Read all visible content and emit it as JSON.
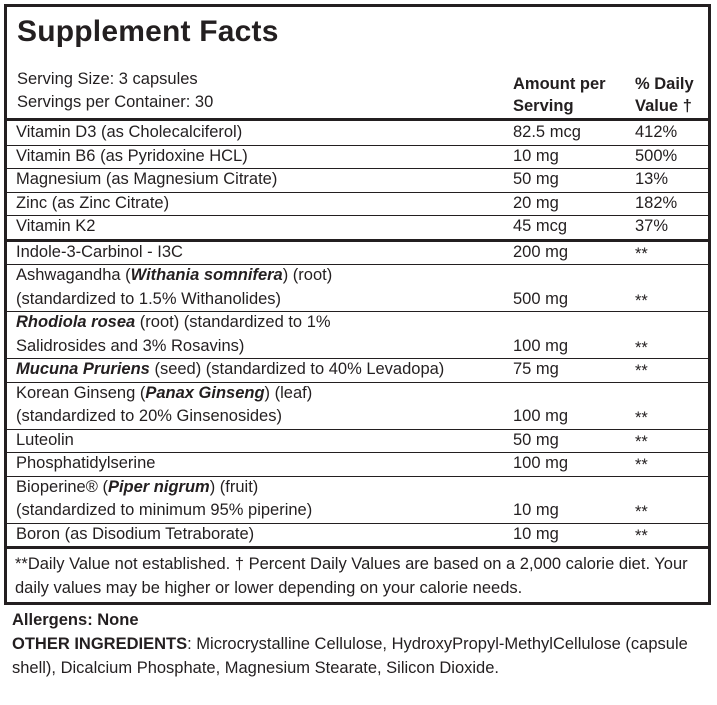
{
  "title": "Supplement Facts",
  "serving_size": "Serving Size: 3 capsules",
  "servings_per_container": "Servings per Container: 30",
  "header": {
    "amount_line1": "Amount per",
    "amount_line2": "Serving",
    "dv_line1": "% Daily",
    "dv_line2": "Value †"
  },
  "nutrients": [
    {
      "name": "Vitamin D3 (as Cholecalciferol)",
      "amount": "82.5 mcg",
      "dv": "412%"
    },
    {
      "name": "Vitamin B6 (as Pyridoxine HCL)",
      "amount": "10 mg",
      "dv": "500%"
    },
    {
      "name": "Magnesium (as Magnesium Citrate)",
      "amount": "50 mg",
      "dv": "13%"
    },
    {
      "name": "Zinc (as Zinc Citrate)",
      "amount": "20 mg",
      "dv": "182%"
    },
    {
      "name": "Vitamin K2",
      "amount": "45 mcg",
      "dv": "37%"
    }
  ],
  "ingredients": [
    {
      "lines": [
        [
          "Indole-3-Carbinol - I3C"
        ]
      ],
      "amount": "200 mg",
      "dv": "**"
    },
    {
      "lines": [
        [
          "Ashwagandha (",
          "Withania somnifera",
          ") (root)"
        ],
        [
          "(standardized to 1.5% Withanolides)"
        ]
      ],
      "amount": "500 mg",
      "dv": "**"
    },
    {
      "lines": [
        [
          "",
          "Rhodiola rosea",
          " (root) (standardized to 1%"
        ],
        [
          "Salidrosides and 3% Rosavins)"
        ]
      ],
      "amount": "100 mg",
      "dv": "**"
    },
    {
      "lines": [
        [
          "",
          "Mucuna Pruriens",
          " (seed) (standardized to 40% Levadopa)"
        ]
      ],
      "amount": "75 mg",
      "dv": "**"
    },
    {
      "lines": [
        [
          "Korean Ginseng (",
          "Panax Ginseng",
          ") (leaf)"
        ],
        [
          "(standardized to 20% Ginsenosides)"
        ]
      ],
      "amount": "100 mg",
      "dv": "**"
    },
    {
      "lines": [
        [
          "Luteolin"
        ]
      ],
      "amount": "50 mg",
      "dv": "**"
    },
    {
      "lines": [
        [
          "Phosphatidylserine"
        ]
      ],
      "amount": "100 mg",
      "dv": "**"
    },
    {
      "lines": [
        [
          "Bioperine® (",
          "Piper nigrum",
          ") (fruit)"
        ],
        [
          "(standardized to minimum 95% piperine)"
        ]
      ],
      "amount": "10 mg",
      "dv": "**"
    },
    {
      "lines": [
        [
          "Boron (as Disodium Tetraborate)"
        ]
      ],
      "amount": "10 mg",
      "dv": "**"
    }
  ],
  "footnote": "**Daily Value not established. † Percent Daily Values are based on a 2,000 calorie diet. Your daily values may be higher or lower depending on your calorie needs.",
  "allergens": "Allergens: None",
  "other_ingredients_label": "OTHER INGREDIENTS",
  "other_ingredients_text": ": Microcrystalline Cellulose, HydroxyPropyl-MethylCellulose (capsule shell), Dicalcium Phosphate, Magnesium Stearate, Silicon Dioxide."
}
